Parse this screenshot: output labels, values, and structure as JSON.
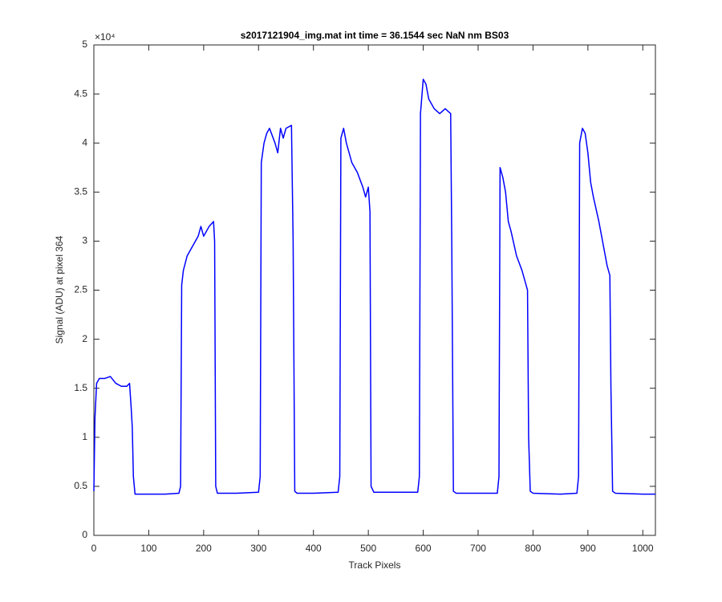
{
  "chart_data": {
    "type": "line",
    "title": "s2017121904_img.mat int time = 36.1544 sec  NaN nm BS03",
    "x_label": "Track Pixels",
    "y_label": "Signal (ADU) at pixel 364",
    "y_multiplier": "×10⁴",
    "color": "#0000ff",
    "x": [
      0,
      2,
      5,
      10,
      20,
      30,
      40,
      50,
      60,
      65,
      68,
      70,
      72,
      75,
      100,
      130,
      155,
      158,
      160,
      163,
      170,
      180,
      190,
      195,
      200,
      210,
      218,
      220,
      222,
      225,
      260,
      300,
      303,
      305,
      310,
      315,
      320,
      330,
      335,
      340,
      345,
      350,
      360,
      363,
      366,
      370,
      400,
      445,
      448,
      450,
      455,
      460,
      465,
      470,
      480,
      490,
      495,
      500,
      503,
      505,
      510,
      550,
      590,
      593,
      595,
      600,
      605,
      610,
      620,
      630,
      640,
      650,
      652,
      655,
      660,
      700,
      735,
      738,
      740,
      745,
      750,
      755,
      760,
      770,
      780,
      785,
      790,
      792,
      795,
      800,
      850,
      880,
      883,
      885,
      890,
      895,
      900,
      905,
      910,
      920,
      925,
      930,
      935,
      940,
      942,
      945,
      950,
      1000,
      1023
    ],
    "values": [
      0.45,
      1.2,
      1.55,
      1.6,
      1.6,
      1.62,
      1.55,
      1.52,
      1.52,
      1.55,
      1.3,
      1.1,
      0.6,
      0.42,
      0.42,
      0.42,
      0.43,
      0.5,
      2.55,
      2.7,
      2.85,
      2.95,
      3.05,
      3.15,
      3.05,
      3.15,
      3.2,
      3.0,
      0.5,
      0.43,
      0.43,
      0.44,
      0.6,
      3.8,
      4.0,
      4.1,
      4.15,
      4.0,
      3.9,
      4.15,
      4.05,
      4.15,
      4.18,
      3.0,
      0.45,
      0.43,
      0.43,
      0.44,
      0.6,
      4.05,
      4.15,
      4.0,
      3.9,
      3.8,
      3.7,
      3.55,
      3.45,
      3.55,
      3.3,
      0.5,
      0.44,
      0.44,
      0.44,
      0.6,
      4.3,
      4.65,
      4.6,
      4.45,
      4.35,
      4.3,
      4.35,
      4.3,
      3.0,
      0.45,
      0.43,
      0.43,
      0.43,
      0.6,
      3.75,
      3.65,
      3.5,
      3.2,
      3.1,
      2.85,
      2.7,
      2.6,
      2.5,
      1.0,
      0.45,
      0.43,
      0.42,
      0.43,
      0.6,
      4.0,
      4.15,
      4.1,
      3.9,
      3.6,
      3.45,
      3.2,
      3.05,
      2.9,
      2.75,
      2.65,
      1.5,
      0.45,
      0.43,
      0.42,
      0.42
    ],
    "xlim": [
      0,
      1023
    ],
    "xticks": [
      0,
      100,
      200,
      300,
      400,
      500,
      600,
      700,
      800,
      900,
      1000
    ],
    "ylim": [
      0,
      5
    ],
    "yticks": [
      0,
      0.5,
      1,
      1.5,
      2,
      2.5,
      3,
      3.5,
      4,
      4.5,
      5
    ]
  }
}
